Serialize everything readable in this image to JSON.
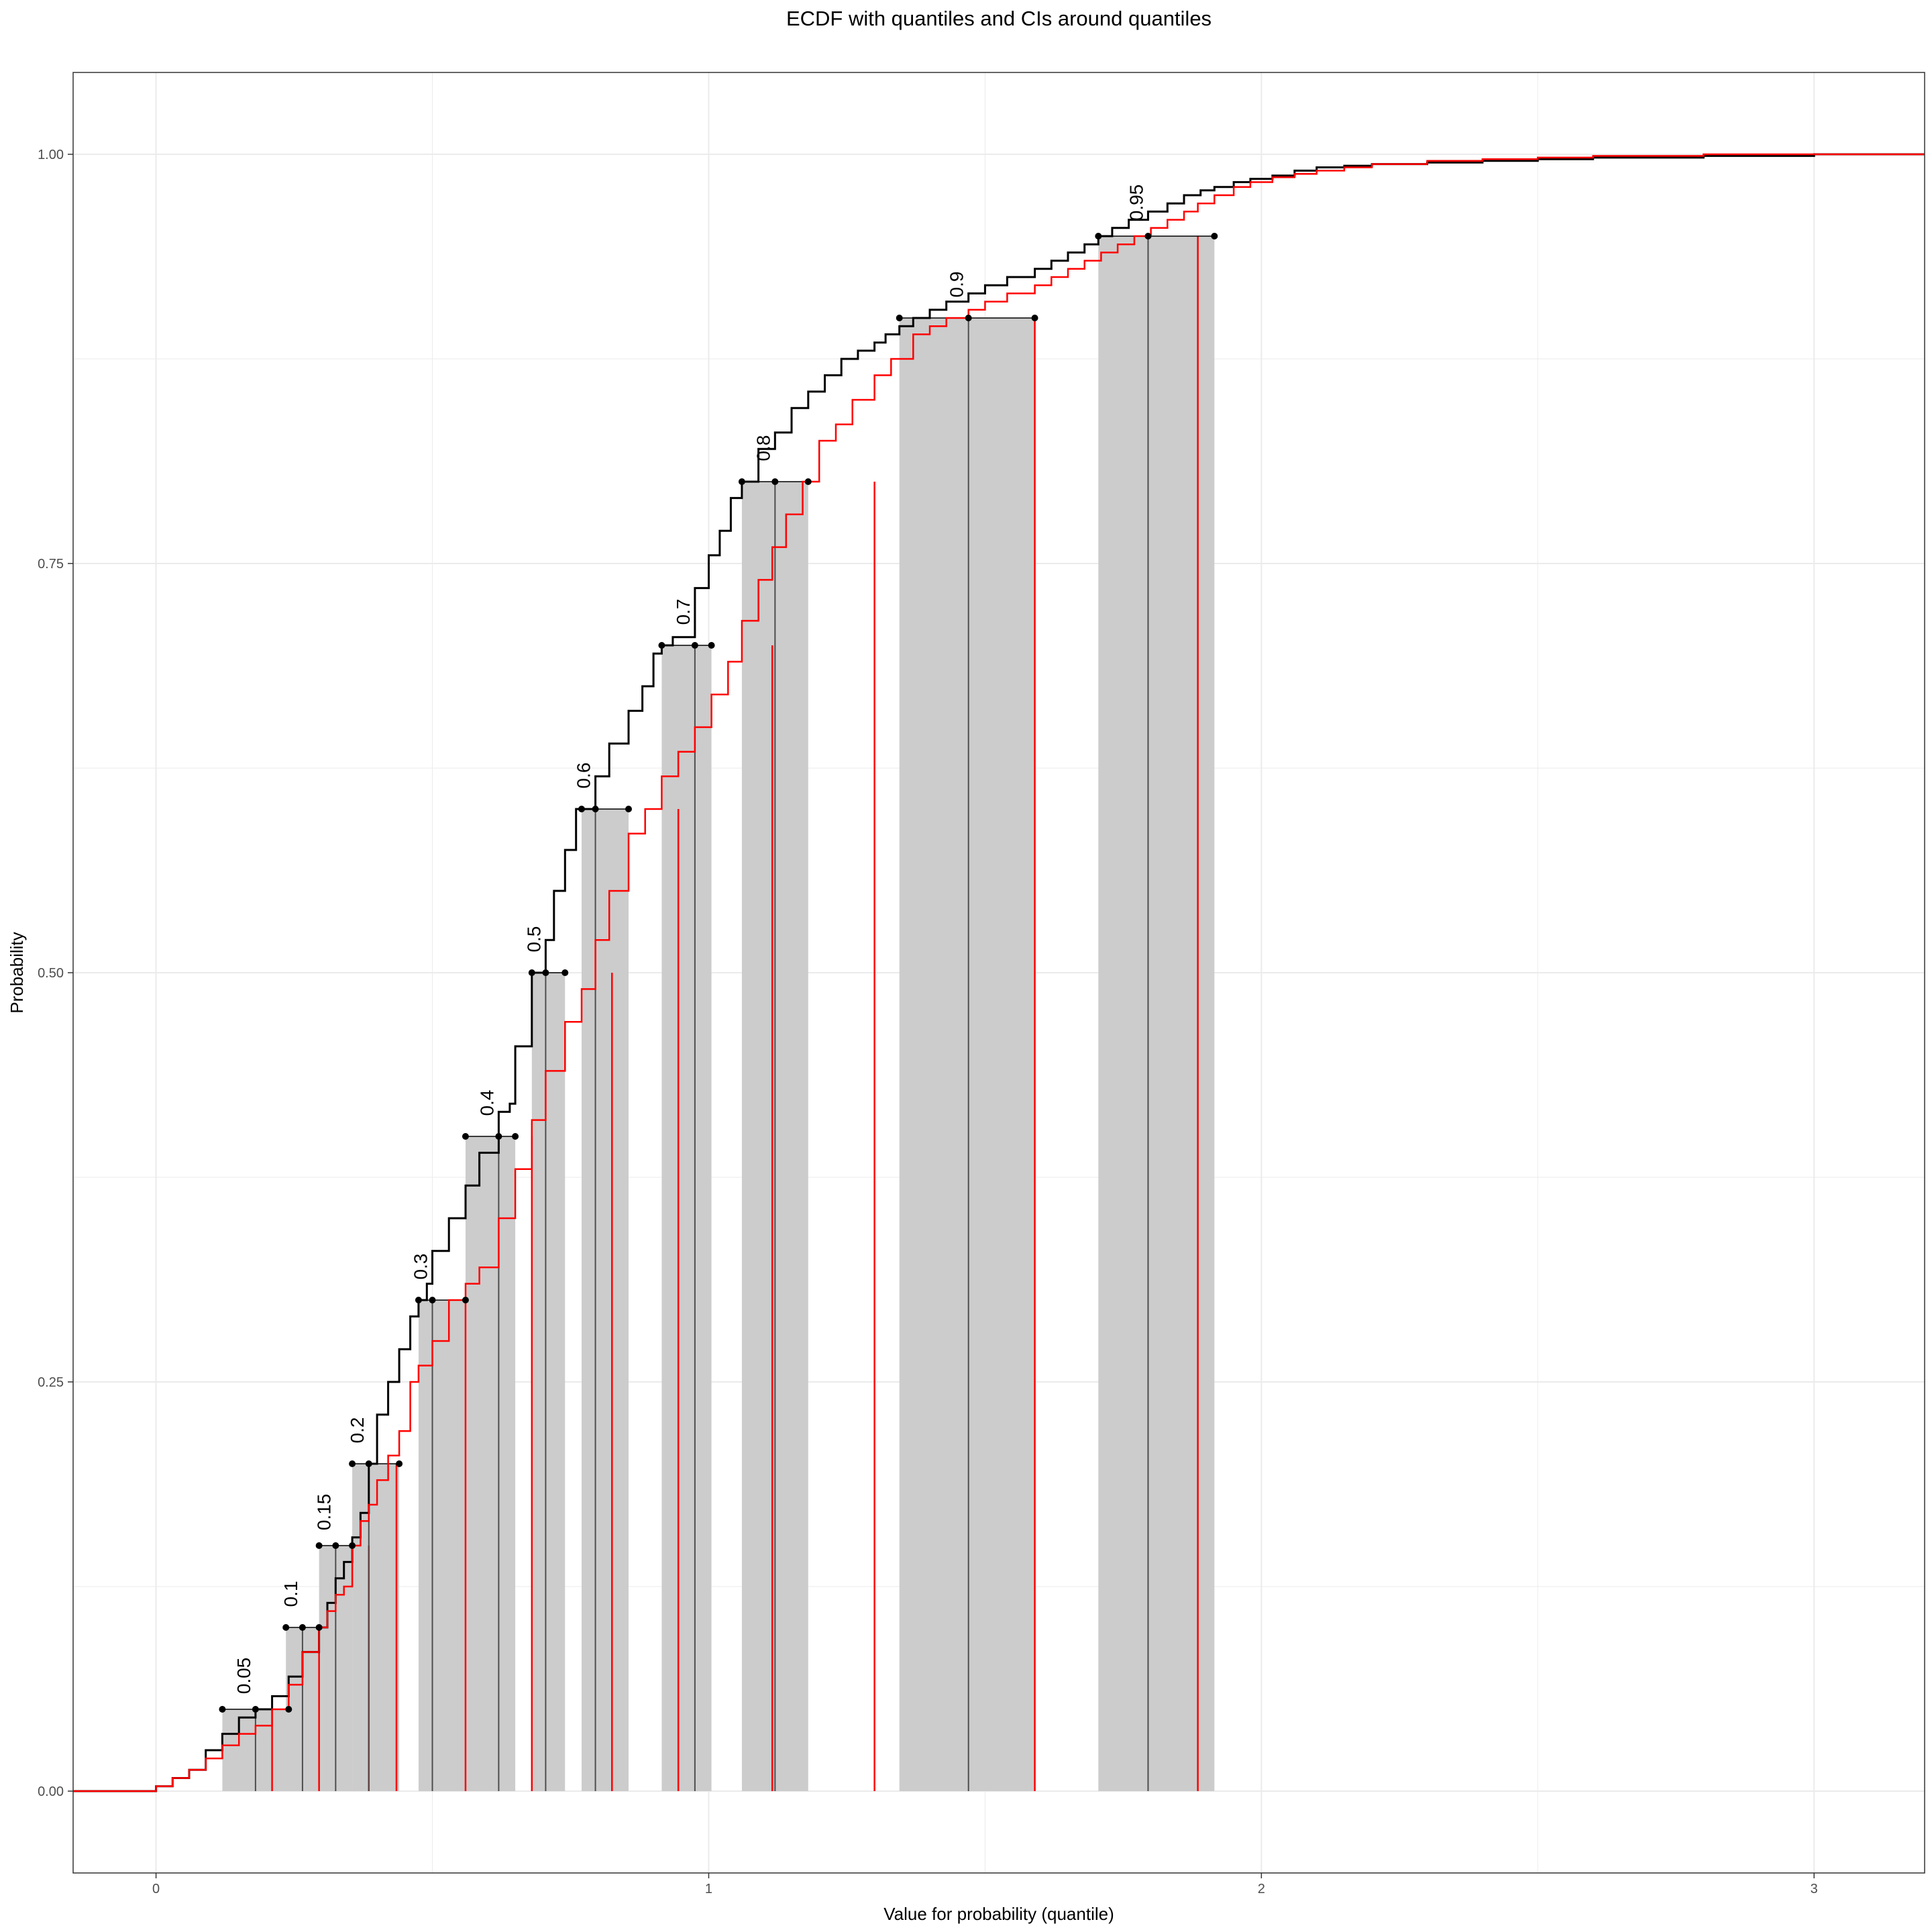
{
  "chart_data": {
    "type": "line",
    "title": "ECDF with quantiles and CIs around quantiles",
    "xlabel": "Value for probability (quantile)",
    "ylabel": "Probability",
    "xlim": [
      -0.15,
      3.2
    ],
    "ylim": [
      -0.05,
      1.05
    ],
    "x_ticks": [
      0,
      1,
      2,
      3
    ],
    "x_tick_labels": [
      "0",
      "1",
      "2",
      "3"
    ],
    "y_ticks": [
      0,
      0.25,
      0.5,
      0.75,
      1
    ],
    "y_tick_labels": [
      "0.00",
      "0.25",
      "0.50",
      "0.75",
      "1.00"
    ],
    "grid": true,
    "colors": {
      "ecdf": "#000000",
      "reference": "#ff0000",
      "ci_band": "#cccccc",
      "quantile_line": "#4d4d4d",
      "grid": "#ebebeb",
      "panel_border": "#333333"
    },
    "quantiles": [
      {
        "p": 0.05,
        "label": "0.05",
        "q": 0.18,
        "lower": 0.12,
        "upper": 0.24,
        "ref": 0.21
      },
      {
        "p": 0.1,
        "label": "0.1",
        "q": 0.265,
        "lower": 0.235,
        "upper": 0.295,
        "ref": 0.295
      },
      {
        "p": 0.15,
        "label": "0.15",
        "q": 0.325,
        "lower": 0.295,
        "upper": 0.355,
        "ref": 0.385
      },
      {
        "p": 0.2,
        "label": "0.2",
        "q": 0.385,
        "lower": 0.355,
        "upper": 0.44,
        "ref": 0.435
      },
      {
        "p": 0.3,
        "label": "0.3",
        "q": 0.5,
        "lower": 0.475,
        "upper": 0.56,
        "ref": 0.56
      },
      {
        "p": 0.4,
        "label": "0.4",
        "q": 0.62,
        "lower": 0.56,
        "upper": 0.65,
        "ref": 0.68
      },
      {
        "p": 0.5,
        "label": "0.5",
        "q": 0.705,
        "lower": 0.68,
        "upper": 0.74,
        "ref": 0.825
      },
      {
        "p": 0.6,
        "label": "0.6",
        "q": 0.795,
        "lower": 0.77,
        "upper": 0.855,
        "ref": 0.945
      },
      {
        "p": 0.7,
        "label": "0.7",
        "q": 0.975,
        "lower": 0.915,
        "upper": 1.005,
        "ref": 1.115
      },
      {
        "p": 0.8,
        "label": "0.8",
        "q": 1.12,
        "lower": 1.06,
        "upper": 1.18,
        "ref": 1.3
      },
      {
        "p": 0.9,
        "label": "0.9",
        "q": 1.47,
        "lower": 1.345,
        "upper": 1.59,
        "ref": 1.59
      },
      {
        "p": 0.95,
        "label": "0.95",
        "q": 1.795,
        "lower": 1.705,
        "upper": 1.915,
        "ref": 1.885
      }
    ],
    "series": [
      {
        "color": "#000000",
        "x": [
          -0.15,
          0.0,
          0.03,
          0.06,
          0.09,
          0.12,
          0.15,
          0.18,
          0.21,
          0.24,
          0.265,
          0.295,
          0.31,
          0.325,
          0.34,
          0.355,
          0.37,
          0.385,
          0.4,
          0.42,
          0.44,
          0.46,
          0.475,
          0.49,
          0.5,
          0.53,
          0.56,
          0.585,
          0.62,
          0.64,
          0.65,
          0.68,
          0.705,
          0.72,
          0.74,
          0.76,
          0.795,
          0.82,
          0.855,
          0.88,
          0.9,
          0.915,
          0.935,
          0.975,
          1.0,
          1.02,
          1.04,
          1.06,
          1.09,
          1.12,
          1.15,
          1.18,
          1.21,
          1.24,
          1.27,
          1.3,
          1.32,
          1.345,
          1.37,
          1.4,
          1.43,
          1.47,
          1.5,
          1.54,
          1.59,
          1.62,
          1.65,
          1.68,
          1.705,
          1.73,
          1.76,
          1.795,
          1.83,
          1.86,
          1.89,
          1.915,
          1.95,
          1.98,
          2.02,
          2.06,
          2.1,
          2.15,
          2.2,
          2.3,
          2.4,
          2.5,
          2.6,
          2.7,
          2.8,
          2.9,
          3.0,
          3.06,
          3.2
        ],
        "y": [
          0.0,
          0.003,
          0.008,
          0.013,
          0.025,
          0.035,
          0.045,
          0.05,
          0.058,
          0.07,
          0.085,
          0.1,
          0.115,
          0.13,
          0.14,
          0.155,
          0.17,
          0.2,
          0.23,
          0.25,
          0.27,
          0.29,
          0.3,
          0.31,
          0.33,
          0.35,
          0.37,
          0.39,
          0.415,
          0.42,
          0.455,
          0.5,
          0.52,
          0.55,
          0.575,
          0.6,
          0.62,
          0.64,
          0.66,
          0.675,
          0.695,
          0.7,
          0.705,
          0.735,
          0.755,
          0.77,
          0.79,
          0.8,
          0.82,
          0.83,
          0.845,
          0.855,
          0.865,
          0.875,
          0.88,
          0.885,
          0.89,
          0.895,
          0.9,
          0.905,
          0.91,
          0.915,
          0.92,
          0.925,
          0.93,
          0.935,
          0.94,
          0.945,
          0.95,
          0.955,
          0.96,
          0.965,
          0.97,
          0.975,
          0.978,
          0.98,
          0.983,
          0.985,
          0.987,
          0.99,
          0.992,
          0.993,
          0.994,
          0.995,
          0.996,
          0.997,
          0.998,
          0.998,
          0.999,
          0.999,
          1.0,
          1.0,
          1.0
        ]
      },
      {
        "color": "#ff0000",
        "x": [
          -0.15,
          0.0,
          0.03,
          0.06,
          0.09,
          0.12,
          0.15,
          0.18,
          0.21,
          0.24,
          0.265,
          0.295,
          0.31,
          0.325,
          0.34,
          0.355,
          0.37,
          0.385,
          0.4,
          0.42,
          0.44,
          0.46,
          0.475,
          0.5,
          0.53,
          0.56,
          0.585,
          0.62,
          0.65,
          0.68,
          0.705,
          0.74,
          0.77,
          0.795,
          0.82,
          0.855,
          0.885,
          0.915,
          0.945,
          0.975,
          1.005,
          1.035,
          1.06,
          1.09,
          1.115,
          1.14,
          1.17,
          1.2,
          1.23,
          1.26,
          1.3,
          1.33,
          1.37,
          1.4,
          1.43,
          1.47,
          1.5,
          1.54,
          1.59,
          1.62,
          1.65,
          1.68,
          1.71,
          1.74,
          1.77,
          1.8,
          1.83,
          1.86,
          1.885,
          1.915,
          1.95,
          1.98,
          2.02,
          2.06,
          2.1,
          2.15,
          2.2,
          2.3,
          2.4,
          2.5,
          2.6,
          2.7,
          2.8,
          2.9,
          3.0,
          3.2
        ],
        "y": [
          0.0,
          0.003,
          0.008,
          0.013,
          0.02,
          0.028,
          0.035,
          0.04,
          0.05,
          0.065,
          0.085,
          0.1,
          0.11,
          0.12,
          0.125,
          0.15,
          0.165,
          0.175,
          0.19,
          0.205,
          0.22,
          0.25,
          0.26,
          0.275,
          0.3,
          0.31,
          0.32,
          0.35,
          0.38,
          0.41,
          0.44,
          0.47,
          0.49,
          0.52,
          0.55,
          0.585,
          0.6,
          0.62,
          0.635,
          0.65,
          0.67,
          0.69,
          0.715,
          0.74,
          0.76,
          0.78,
          0.8,
          0.825,
          0.835,
          0.85,
          0.865,
          0.875,
          0.89,
          0.895,
          0.9,
          0.905,
          0.91,
          0.915,
          0.92,
          0.925,
          0.93,
          0.935,
          0.94,
          0.945,
          0.95,
          0.955,
          0.96,
          0.965,
          0.97,
          0.975,
          0.98,
          0.983,
          0.986,
          0.988,
          0.99,
          0.992,
          0.994,
          0.996,
          0.997,
          0.998,
          0.999,
          0.999,
          1.0,
          1.0,
          1.0,
          1.0
        ]
      }
    ]
  }
}
